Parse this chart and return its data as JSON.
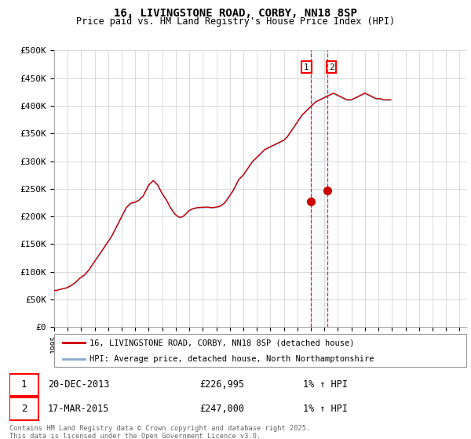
{
  "title": "16, LIVINGSTONE ROAD, CORBY, NN18 8SP",
  "subtitle": "Price paid vs. HM Land Registry's House Price Index (HPI)",
  "ylabel_values": [
    "£0",
    "£50K",
    "£100K",
    "£150K",
    "£200K",
    "£250K",
    "£300K",
    "£350K",
    "£400K",
    "£450K",
    "£500K"
  ],
  "ylim": [
    0,
    500000
  ],
  "yticks": [
    0,
    50000,
    100000,
    150000,
    200000,
    250000,
    300000,
    350000,
    400000,
    450000,
    500000
  ],
  "legend_line1": "16, LIVINGSTONE ROAD, CORBY, NN18 8SP (detached house)",
  "legend_line2": "HPI: Average price, detached house, North Northamptonshire",
  "transaction1_date": "20-DEC-2013",
  "transaction1_price": "£226,995",
  "transaction1_hpi": "1% ↑ HPI",
  "transaction1_year": 2013.97,
  "transaction1_value": 226995,
  "transaction2_date": "17-MAR-2015",
  "transaction2_price": "£247,000",
  "transaction2_hpi": "1% ↑ HPI",
  "transaction2_year": 2015.21,
  "transaction2_value": 247000,
  "line_color_red": "#cc0000",
  "line_color_blue": "#88aacc",
  "bg_color": "#ffffff",
  "grid_color": "#cccccc",
  "footer_text": "Contains HM Land Registry data © Crown copyright and database right 2025.\nThis data is licensed under the Open Government Licence v3.0.",
  "hpi_values_monthly": [
    65000,
    66000,
    65500,
    66500,
    67000,
    67500,
    68000,
    68500,
    69000,
    69500,
    70000,
    70500,
    71000,
    72000,
    73000,
    74000,
    75500,
    77000,
    78500,
    80000,
    82000,
    84000,
    86000,
    88000,
    89000,
    90500,
    92000,
    93500,
    96000,
    98000,
    100500,
    103000,
    106000,
    109000,
    112000,
    115000,
    118000,
    121000,
    124000,
    127000,
    130000,
    133000,
    136000,
    139000,
    142000,
    145000,
    148000,
    151000,
    154000,
    157000,
    160000,
    163000,
    167000,
    171000,
    175000,
    179000,
    183000,
    187000,
    191000,
    195000,
    199000,
    203000,
    207000,
    211000,
    215000,
    217000,
    219000,
    221000,
    223000,
    223500,
    224000,
    224500,
    225000,
    226000,
    227000,
    228000,
    230000,
    232000,
    234000,
    236000,
    240000,
    244000,
    248000,
    252000,
    256000,
    258000,
    260000,
    262000,
    264000,
    262000,
    260000,
    258000,
    256000,
    252000,
    248000,
    244000,
    240000,
    237000,
    234000,
    231000,
    228000,
    224000,
    220000,
    216000,
    213000,
    210000,
    207000,
    204000,
    202000,
    200500,
    199000,
    198000,
    197500,
    198000,
    199000,
    200000,
    202000,
    204000,
    206000,
    208000,
    210000,
    211000,
    212000,
    213000,
    213500,
    214000,
    214500,
    215000,
    215200,
    215400,
    215500,
    215600,
    215700,
    215800,
    215900,
    216000,
    216000,
    215800,
    215500,
    215200,
    215000,
    215200,
    215400,
    215600,
    216000,
    216500,
    217000,
    217500,
    218500,
    220000,
    221500,
    223000,
    225000,
    228000,
    231000,
    234000,
    237000,
    240000,
    243000,
    246000,
    250000,
    254000,
    258000,
    262000,
    266000,
    268000,
    270000,
    272000,
    274000,
    277000,
    280000,
    283000,
    286000,
    289000,
    292000,
    295000,
    298000,
    300000,
    302000,
    304000,
    306000,
    308000,
    310000,
    312000,
    314000,
    316000,
    318000,
    320000,
    321000,
    322000,
    323000,
    324000,
    325000,
    326000,
    327000,
    328000,
    329000,
    330000,
    331000,
    332000,
    333000,
    334000,
    335000,
    336000,
    337000,
    339000,
    341000,
    343000,
    346000,
    349000,
    352000,
    355000,
    358000,
    361000,
    364000,
    367000,
    370000,
    373000,
    376000,
    379000,
    382000,
    384000,
    386000,
    388000,
    390000,
    392000,
    394000,
    396000,
    398000,
    400000,
    402000,
    404000,
    406000,
    407000,
    408000,
    409000,
    410000,
    411000,
    412000,
    413000,
    414000,
    415000,
    416000,
    417000,
    418000,
    419000,
    420000,
    421000,
    422000,
    421000,
    420000,
    419000,
    418000,
    417000,
    416000,
    415000,
    414000,
    413000,
    412000,
    411000,
    410000,
    410000,
    410000,
    410000,
    410000,
    411000,
    412000,
    413000,
    414000,
    415000,
    416000,
    417000,
    418000,
    419000,
    420000,
    421000,
    422000,
    421000,
    420000,
    419000,
    418000,
    417000,
    416000,
    415000,
    414000,
    413000,
    412000,
    412000,
    412000,
    412000,
    412000,
    411000,
    410000,
    410000,
    410000,
    410000,
    410000,
    410000,
    410000,
    410000
  ],
  "price_values_monthly": [
    65500,
    66500,
    66000,
    67000,
    67500,
    68000,
    68500,
    69000,
    69500,
    70000,
    70500,
    71000,
    72000,
    73000,
    74000,
    75000,
    76500,
    78000,
    79500,
    81000,
    83000,
    85000,
    87000,
    89000,
    90000,
    91500,
    93000,
    94500,
    97000,
    99000,
    101500,
    104000,
    107000,
    110000,
    113000,
    116000,
    119000,
    122000,
    125000,
    128000,
    131000,
    134000,
    137000,
    140000,
    143000,
    146000,
    149000,
    152000,
    155000,
    158000,
    161000,
    164000,
    168000,
    172000,
    176000,
    180000,
    184000,
    188000,
    192000,
    196000,
    200000,
    204000,
    208000,
    212000,
    216000,
    218000,
    220000,
    222000,
    224000,
    224500,
    225000,
    225500,
    226000,
    227000,
    228000,
    229000,
    231000,
    233000,
    235000,
    237000,
    241000,
    245000,
    249000,
    253000,
    257000,
    259000,
    261000,
    263000,
    265000,
    263000,
    261000,
    259000,
    257000,
    253000,
    249000,
    245000,
    241000,
    238000,
    235000,
    232000,
    229000,
    225000,
    221000,
    217000,
    214000,
    211000,
    208000,
    205000,
    203000,
    201500,
    200000,
    199000,
    198500,
    199000,
    200000,
    201000,
    203000,
    205000,
    207000,
    209000,
    211000,
    212000,
    213000,
    214000,
    214500,
    215000,
    215500,
    216000,
    216200,
    216400,
    216500,
    216600,
    216700,
    216800,
    216900,
    217000,
    217000,
    216800,
    216500,
    216200,
    216000,
    216200,
    216400,
    216600,
    217000,
    217500,
    218000,
    218500,
    219500,
    221000,
    222500,
    224000,
    226000,
    229000,
    232000,
    235000,
    238000,
    241000,
    244000,
    247000,
    251000,
    255000,
    259000,
    263000,
    267000,
    269000,
    271000,
    273000,
    275000,
    278000,
    281000,
    284000,
    287000,
    290000,
    293000,
    296000,
    299000,
    301000,
    303000,
    305000,
    307000,
    309000,
    311000,
    313000,
    315000,
    317000,
    319000,
    321000,
    322000,
    323000,
    324000,
    325000,
    326000,
    327000,
    328000,
    329000,
    330000,
    331000,
    332000,
    333000,
    334000,
    335000,
    336000,
    337000,
    338000,
    340000,
    342000,
    344000,
    347000,
    350000,
    353000,
    356000,
    359000,
    362000,
    365000,
    368000,
    371000,
    374000,
    377000,
    380000,
    383000,
    385000,
    387000,
    389000,
    391000,
    393000,
    395000,
    397000,
    399000,
    401000,
    403000,
    405000,
    407000,
    408000,
    409000,
    410000,
    411000,
    412000,
    413000,
    414000,
    415000,
    416000,
    417000,
    418000,
    419000,
    420000,
    421000,
    422000,
    423000,
    422000,
    421000,
    420000,
    419000,
    418000,
    417000,
    416000,
    415000,
    414000,
    413000,
    412000,
    411000,
    411000,
    411000,
    411000,
    411000,
    412000,
    413000,
    414000,
    415000,
    416000,
    417000,
    418000,
    419000,
    420000,
    421000,
    422000,
    423000,
    422000,
    421000,
    420000,
    419000,
    418000,
    417000,
    416000,
    415000,
    414000,
    413000,
    413000,
    413000,
    413000,
    413000,
    412000,
    411000,
    411000,
    411000,
    411000,
    411000,
    411000,
    411000,
    411000
  ],
  "start_year": 1995,
  "months_per_year": 12
}
